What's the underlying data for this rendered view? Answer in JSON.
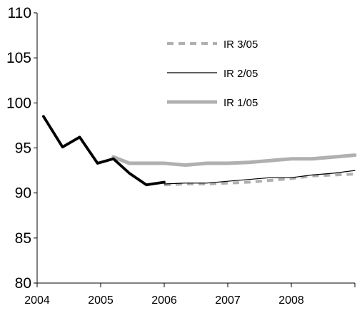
{
  "chart_data": {
    "type": "line",
    "title": "",
    "xlabel": "",
    "ylabel": "",
    "x_ticks": [
      "2004",
      "2005",
      "2006",
      "2007",
      "2008"
    ],
    "y_ticks": [
      "80",
      "85",
      "90",
      "95",
      "100",
      "105",
      "110"
    ],
    "xlim": [
      2004.0,
      2009.0
    ],
    "ylim": [
      80,
      110
    ],
    "grid": false,
    "legend_position": "top-right",
    "series": [
      {
        "name": "IR 3/05",
        "color": "#b0b0b0",
        "style": "dashed",
        "points": [
          {
            "x": 2006.0,
            "y": 90.9
          },
          {
            "x": 2006.33,
            "y": 91.0
          },
          {
            "x": 2006.67,
            "y": 91.0
          },
          {
            "x": 2007.0,
            "y": 91.1
          },
          {
            "x": 2007.33,
            "y": 91.2
          },
          {
            "x": 2007.67,
            "y": 91.4
          },
          {
            "x": 2008.0,
            "y": 91.6
          },
          {
            "x": 2008.33,
            "y": 91.9
          },
          {
            "x": 2008.67,
            "y": 92.0
          },
          {
            "x": 2009.0,
            "y": 92.1
          }
        ]
      },
      {
        "name": "IR 2/05",
        "color": "#000000",
        "style": "thin",
        "points": [
          {
            "x": 2006.0,
            "y": 91.0
          },
          {
            "x": 2006.33,
            "y": 91.1
          },
          {
            "x": 2006.67,
            "y": 91.1
          },
          {
            "x": 2007.0,
            "y": 91.3
          },
          {
            "x": 2007.33,
            "y": 91.5
          },
          {
            "x": 2007.67,
            "y": 91.7
          },
          {
            "x": 2008.0,
            "y": 91.7
          },
          {
            "x": 2008.33,
            "y": 92.0
          },
          {
            "x": 2008.67,
            "y": 92.2
          },
          {
            "x": 2009.0,
            "y": 92.5
          }
        ]
      },
      {
        "name": "IR 1/05",
        "color": "#b0b0b0",
        "style": "thick",
        "points": [
          {
            "x": 2005.2,
            "y": 94.0
          },
          {
            "x": 2005.45,
            "y": 93.3
          },
          {
            "x": 2005.75,
            "y": 93.3
          },
          {
            "x": 2006.0,
            "y": 93.3
          },
          {
            "x": 2006.33,
            "y": 93.1
          },
          {
            "x": 2006.67,
            "y": 93.3
          },
          {
            "x": 2007.0,
            "y": 93.3
          },
          {
            "x": 2007.33,
            "y": 93.4
          },
          {
            "x": 2007.67,
            "y": 93.6
          },
          {
            "x": 2008.0,
            "y": 93.8
          },
          {
            "x": 2008.33,
            "y": 93.8
          },
          {
            "x": 2008.67,
            "y": 94.0
          },
          {
            "x": 2009.0,
            "y": 94.2
          }
        ]
      },
      {
        "name": "",
        "color": "#000000",
        "style": "bold",
        "points": [
          {
            "x": 2004.1,
            "y": 98.5
          },
          {
            "x": 2004.4,
            "y": 95.1
          },
          {
            "x": 2004.67,
            "y": 96.2
          },
          {
            "x": 2004.95,
            "y": 93.3
          },
          {
            "x": 2005.2,
            "y": 93.8
          },
          {
            "x": 2005.45,
            "y": 92.2
          },
          {
            "x": 2005.72,
            "y": 90.9
          },
          {
            "x": 2006.0,
            "y": 91.2
          }
        ]
      }
    ]
  }
}
